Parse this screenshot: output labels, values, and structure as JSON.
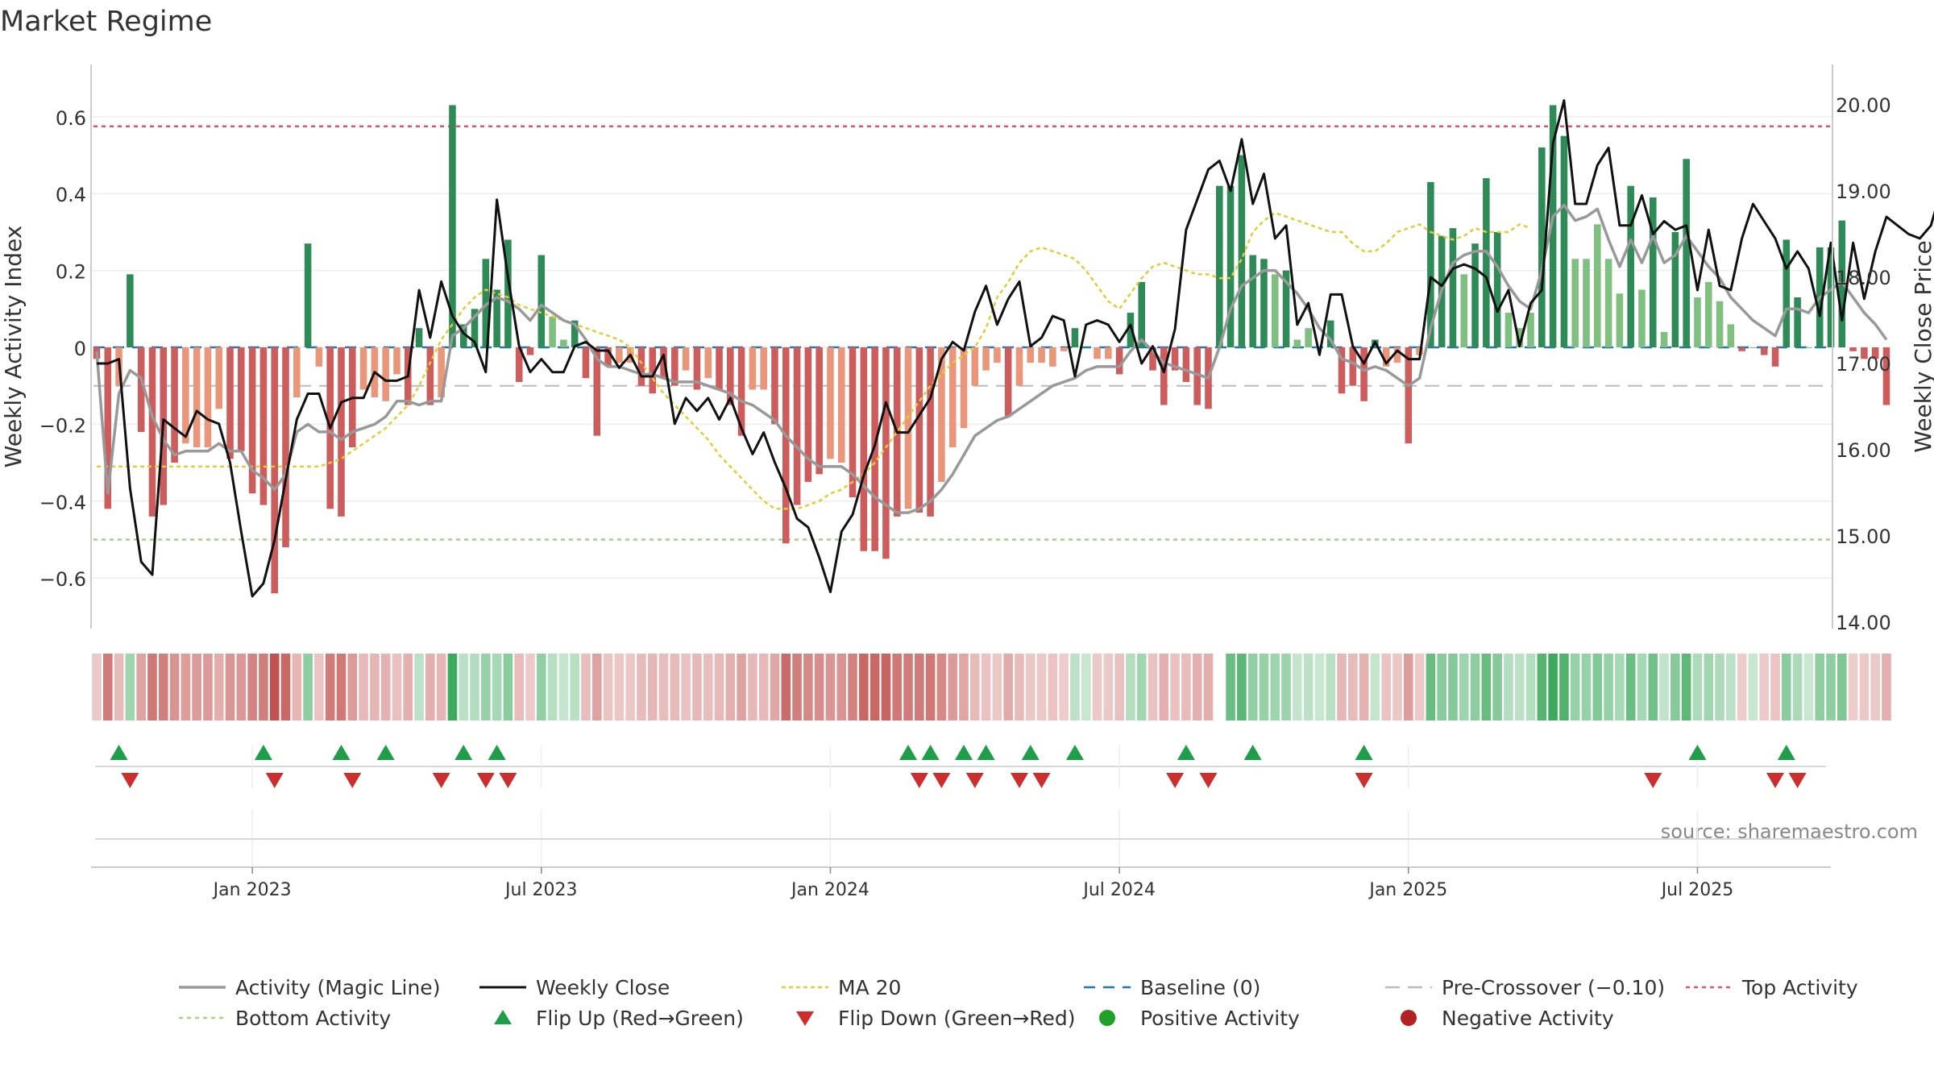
{
  "chart_data": {
    "type": "bar",
    "title": "Market Regime",
    "ylabel_left": "Weekly Activity Index",
    "ylabel_right": "Weekly Close Price",
    "source": "source: sharemaestro.com",
    "y_left_ticks": [
      "0.6",
      "0.4",
      "0.2",
      "0",
      "−0.2",
      "−0.4",
      "−0.6"
    ],
    "y_left_values": [
      0.6,
      0.4,
      0.2,
      0,
      -0.2,
      -0.4,
      -0.6
    ],
    "y_right_ticks": [
      "20.00",
      "19.00",
      "18.00",
      "17.00",
      "16.00",
      "15.00",
      "14.00"
    ],
    "y_right_values": [
      20,
      19,
      18,
      17,
      16,
      15,
      14
    ],
    "ylim_left": [
      -0.73,
      0.73
    ],
    "ylim_right": [
      14.0,
      20.2
    ],
    "x_tick_labels": [
      "Jan 2023",
      "Jul 2023",
      "Jan 2024",
      "Jul 2024",
      "Jan 2025",
      "Jul 2025"
    ],
    "x_tick_weeks": [
      14,
      40,
      66,
      92,
      118,
      144
    ],
    "num_weeks": 157,
    "reference_lines": {
      "top_activity": 0.575,
      "pre_crossover": -0.1,
      "bottom_activity": -0.5,
      "baseline": 0
    },
    "activity": [
      -0.03,
      -0.42,
      -0.1,
      0.19,
      -0.22,
      -0.44,
      -0.41,
      -0.3,
      -0.25,
      -0.26,
      -0.26,
      -0.16,
      -0.29,
      -0.27,
      -0.38,
      -0.41,
      -0.64,
      -0.52,
      -0.13,
      0.27,
      -0.05,
      -0.42,
      -0.44,
      -0.26,
      -0.11,
      -0.13,
      -0.14,
      -0.07,
      -0.15,
      0.05,
      -0.15,
      -0.13,
      0.63,
      0.06,
      0.1,
      0.23,
      0.15,
      0.28,
      -0.09,
      -0.02,
      0.24,
      0.08,
      0.02,
      0.07,
      -0.08,
      -0.23,
      -0.05,
      -0.04,
      -0.04,
      -0.1,
      -0.12,
      -0.08,
      -0.1,
      -0.06,
      -0.11,
      -0.08,
      -0.11,
      -0.15,
      -0.23,
      -0.11,
      -0.11,
      -0.2,
      -0.51,
      -0.41,
      -0.35,
      -0.33,
      -0.29,
      -0.3,
      -0.39,
      -0.53,
      -0.53,
      -0.55,
      -0.44,
      -0.42,
      -0.43,
      -0.44,
      -0.35,
      -0.26,
      -0.21,
      -0.1,
      -0.06,
      -0.04,
      -0.18,
      -0.1,
      -0.04,
      -0.04,
      -0.05,
      -0.01,
      0.05,
      0.0,
      -0.03,
      -0.03,
      -0.07,
      0.09,
      0.17,
      -0.06,
      -0.15,
      -0.06,
      -0.09,
      -0.15,
      -0.16,
      0.42,
      0.42,
      0.5,
      0.24,
      0.23,
      0.19,
      0.2,
      0.02,
      0.05,
      0.0,
      0.07,
      -0.12,
      -0.1,
      -0.14,
      0.02,
      -0.05,
      -0.04,
      -0.25,
      -0.02,
      0.43,
      0.29,
      0.31,
      0.19,
      0.27,
      0.44,
      0.3,
      0.09,
      0.05,
      0.09,
      0.52,
      0.63,
      0.55,
      0.23,
      0.23,
      0.32,
      0.23,
      0.14,
      0.42,
      0.15,
      0.39,
      0.04,
      0.3,
      0.49,
      0.13,
      0.17,
      0.12,
      0.06,
      -0.01,
      0.0,
      -0.02,
      -0.05,
      0.28,
      0.13,
      0.0,
      0.26,
      0.26,
      0.33,
      -0.01,
      -0.03,
      -0.03,
      -0.15
    ],
    "activity_magic_line": [
      -0.01,
      -0.38,
      -0.12,
      -0.06,
      -0.08,
      -0.18,
      -0.24,
      -0.28,
      -0.27,
      -0.27,
      -0.27,
      -0.25,
      -0.27,
      -0.27,
      -0.32,
      -0.34,
      -0.37,
      -0.33,
      -0.22,
      -0.2,
      -0.22,
      -0.22,
      -0.24,
      -0.22,
      -0.21,
      -0.2,
      -0.18,
      -0.14,
      -0.14,
      -0.15,
      -0.14,
      -0.14,
      0.03,
      0.05,
      0.08,
      0.11,
      0.13,
      0.12,
      0.1,
      0.07,
      0.11,
      0.09,
      0.07,
      0.06,
      0.02,
      -0.03,
      -0.05,
      -0.05,
      -0.06,
      -0.07,
      -0.07,
      -0.08,
      -0.09,
      -0.09,
      -0.09,
      -0.1,
      -0.11,
      -0.12,
      -0.14,
      -0.15,
      -0.17,
      -0.19,
      -0.23,
      -0.26,
      -0.29,
      -0.31,
      -0.31,
      -0.31,
      -0.33,
      -0.36,
      -0.39,
      -0.41,
      -0.43,
      -0.43,
      -0.42,
      -0.4,
      -0.37,
      -0.33,
      -0.28,
      -0.23,
      -0.21,
      -0.19,
      -0.18,
      -0.16,
      -0.14,
      -0.12,
      -0.1,
      -0.09,
      -0.08,
      -0.06,
      -0.05,
      -0.05,
      -0.05,
      -0.01,
      0.02,
      -0.01,
      -0.04,
      -0.05,
      -0.06,
      -0.07,
      -0.08,
      0.0,
      0.1,
      0.16,
      0.18,
      0.2,
      0.2,
      0.17,
      0.14,
      0.1,
      0.05,
      0.02,
      -0.03,
      -0.04,
      -0.06,
      -0.05,
      -0.06,
      -0.08,
      -0.1,
      -0.08,
      0.05,
      0.15,
      0.22,
      0.24,
      0.25,
      0.25,
      0.21,
      0.16,
      0.12,
      0.1,
      0.2,
      0.34,
      0.37,
      0.33,
      0.34,
      0.36,
      0.28,
      0.21,
      0.28,
      0.22,
      0.29,
      0.22,
      0.24,
      0.29,
      0.25,
      0.21,
      0.18,
      0.13,
      0.1,
      0.07,
      0.05,
      0.03,
      0.1,
      0.1,
      0.09,
      0.13,
      0.15,
      0.17,
      0.13,
      0.09,
      0.06,
      0.02
    ],
    "weekly_close": [
      17.0,
      17.0,
      17.05,
      15.55,
      14.7,
      14.55,
      16.35,
      16.25,
      16.15,
      16.45,
      16.35,
      16.3,
      15.85,
      15.05,
      14.3,
      14.45,
      14.95,
      15.65,
      16.35,
      16.65,
      16.65,
      16.25,
      16.55,
      16.6,
      16.6,
      16.9,
      16.8,
      16.8,
      16.85,
      17.85,
      17.3,
      17.95,
      17.55,
      17.35,
      17.25,
      16.9,
      18.9,
      18.0,
      17.2,
      16.9,
      17.05,
      16.9,
      16.9,
      17.2,
      17.25,
      17.15,
      17.15,
      16.95,
      17.1,
      16.85,
      16.85,
      17.1,
      16.3,
      16.6,
      16.45,
      16.6,
      16.35,
      16.6,
      16.25,
      15.95,
      16.2,
      15.85,
      15.55,
      15.2,
      15.1,
      14.75,
      14.35,
      15.05,
      15.25,
      15.7,
      16.05,
      16.55,
      16.2,
      16.2,
      16.4,
      16.6,
      17.05,
      17.25,
      17.15,
      17.6,
      17.9,
      17.45,
      17.75,
      17.95,
      17.2,
      17.3,
      17.55,
      17.5,
      16.85,
      17.45,
      17.5,
      17.45,
      17.25,
      17.45,
      17.0,
      17.2,
      16.9,
      17.4,
      18.55,
      18.9,
      19.25,
      19.35,
      19.0,
      19.6,
      18.85,
      19.2,
      18.45,
      18.6,
      17.45,
      17.7,
      17.1,
      17.8,
      17.8,
      17.2,
      17.0,
      17.25,
      17.0,
      17.15,
      17.05,
      17.05,
      18.0,
      17.9,
      18.1,
      18.15,
      18.1,
      18.0,
      17.6,
      17.85,
      17.2,
      17.7,
      17.85,
      19.55,
      20.05,
      18.85,
      18.85,
      19.3,
      19.5,
      18.6,
      18.6,
      18.95,
      18.5,
      18.65,
      18.55,
      18.6,
      17.85,
      18.55,
      17.9,
      17.85,
      18.45,
      18.85,
      18.65,
      18.45,
      18.1,
      18.3,
      18.1,
      17.55,
      18.4,
      17.5,
      18.4,
      17.75,
      18.3,
      18.7,
      18.6,
      18.5,
      18.45,
      18.6,
      19.05,
      18.1
    ],
    "ma20": [
      -0.31,
      -0.31,
      -0.31,
      -0.31,
      -0.31,
      -0.31,
      -0.31,
      -0.31,
      -0.31,
      -0.31,
      -0.31,
      -0.31,
      -0.31,
      -0.31,
      -0.31,
      -0.31,
      -0.31,
      -0.31,
      -0.31,
      -0.31,
      -0.31,
      -0.3,
      -0.29,
      -0.27,
      -0.25,
      -0.23,
      -0.21,
      -0.18,
      -0.15,
      -0.1,
      -0.04,
      0.02,
      0.06,
      0.1,
      0.13,
      0.15,
      0.14,
      0.13,
      0.11,
      0.1,
      0.09,
      0.08,
      0.07,
      0.06,
      0.05,
      0.04,
      0.03,
      0.02,
      0.0,
      -0.04,
      -0.08,
      -0.12,
      -0.15,
      -0.18,
      -0.21,
      -0.24,
      -0.28,
      -0.31,
      -0.34,
      -0.37,
      -0.4,
      -0.42,
      -0.42,
      -0.42,
      -0.41,
      -0.4,
      -0.38,
      -0.37,
      -0.35,
      -0.33,
      -0.3,
      -0.26,
      -0.22,
      -0.18,
      -0.14,
      -0.1,
      -0.07,
      -0.04,
      -0.02,
      0.0,
      0.05,
      0.13,
      0.17,
      0.22,
      0.25,
      0.26,
      0.25,
      0.24,
      0.23,
      0.2,
      0.16,
      0.12,
      0.1,
      0.14,
      0.18,
      0.21,
      0.22,
      0.21,
      0.2,
      0.19,
      0.19,
      0.18,
      0.18,
      0.23,
      0.3,
      0.33,
      0.35,
      0.34,
      0.33,
      0.32,
      0.31,
      0.3,
      0.3,
      0.27,
      0.25,
      0.25,
      0.27,
      0.3,
      0.31,
      0.32,
      0.3,
      0.29,
      0.28,
      0.29,
      0.31,
      0.3,
      0.3,
      0.3,
      0.32,
      0.31
    ],
    "flip_up_weeks": [
      2,
      15,
      22,
      26,
      33,
      36,
      73,
      75,
      78,
      80,
      84,
      88,
      98,
      104,
      114,
      144,
      152
    ],
    "flip_down_weeks": [
      3,
      16,
      23,
      31,
      35,
      37,
      74,
      76,
      79,
      83,
      85,
      97,
      100,
      114,
      140,
      151,
      153
    ],
    "legend": [
      "Activity (Magic Line)",
      "Weekly Close",
      "MA 20",
      "Baseline (0)",
      "Pre-Crossover (−0.10)",
      "Top Activity",
      "Bottom Activity",
      "Flip Up (Red→Green)",
      "Flip Down (Green→Red)",
      "Positive Activity",
      "Negative Activity"
    ]
  },
  "colors": {
    "strong_green": "#2e8b57",
    "light_green": "#7fbf7f",
    "strong_red": "#cd5c5c",
    "light_red": "#e9967a",
    "magic_line": "#999999",
    "weekly_close": "#111111",
    "ma20": "#e6cc33",
    "baseline": "#1f77b4",
    "pre_crossover": "#bbbbbb",
    "top_activity": "#d9546e",
    "bottom_activity": "#a8d080",
    "flip_up": "#1e9e48",
    "flip_down": "#cc2e2e",
    "positive_dot": "#22a02a",
    "negative_dot": "#b22222"
  }
}
